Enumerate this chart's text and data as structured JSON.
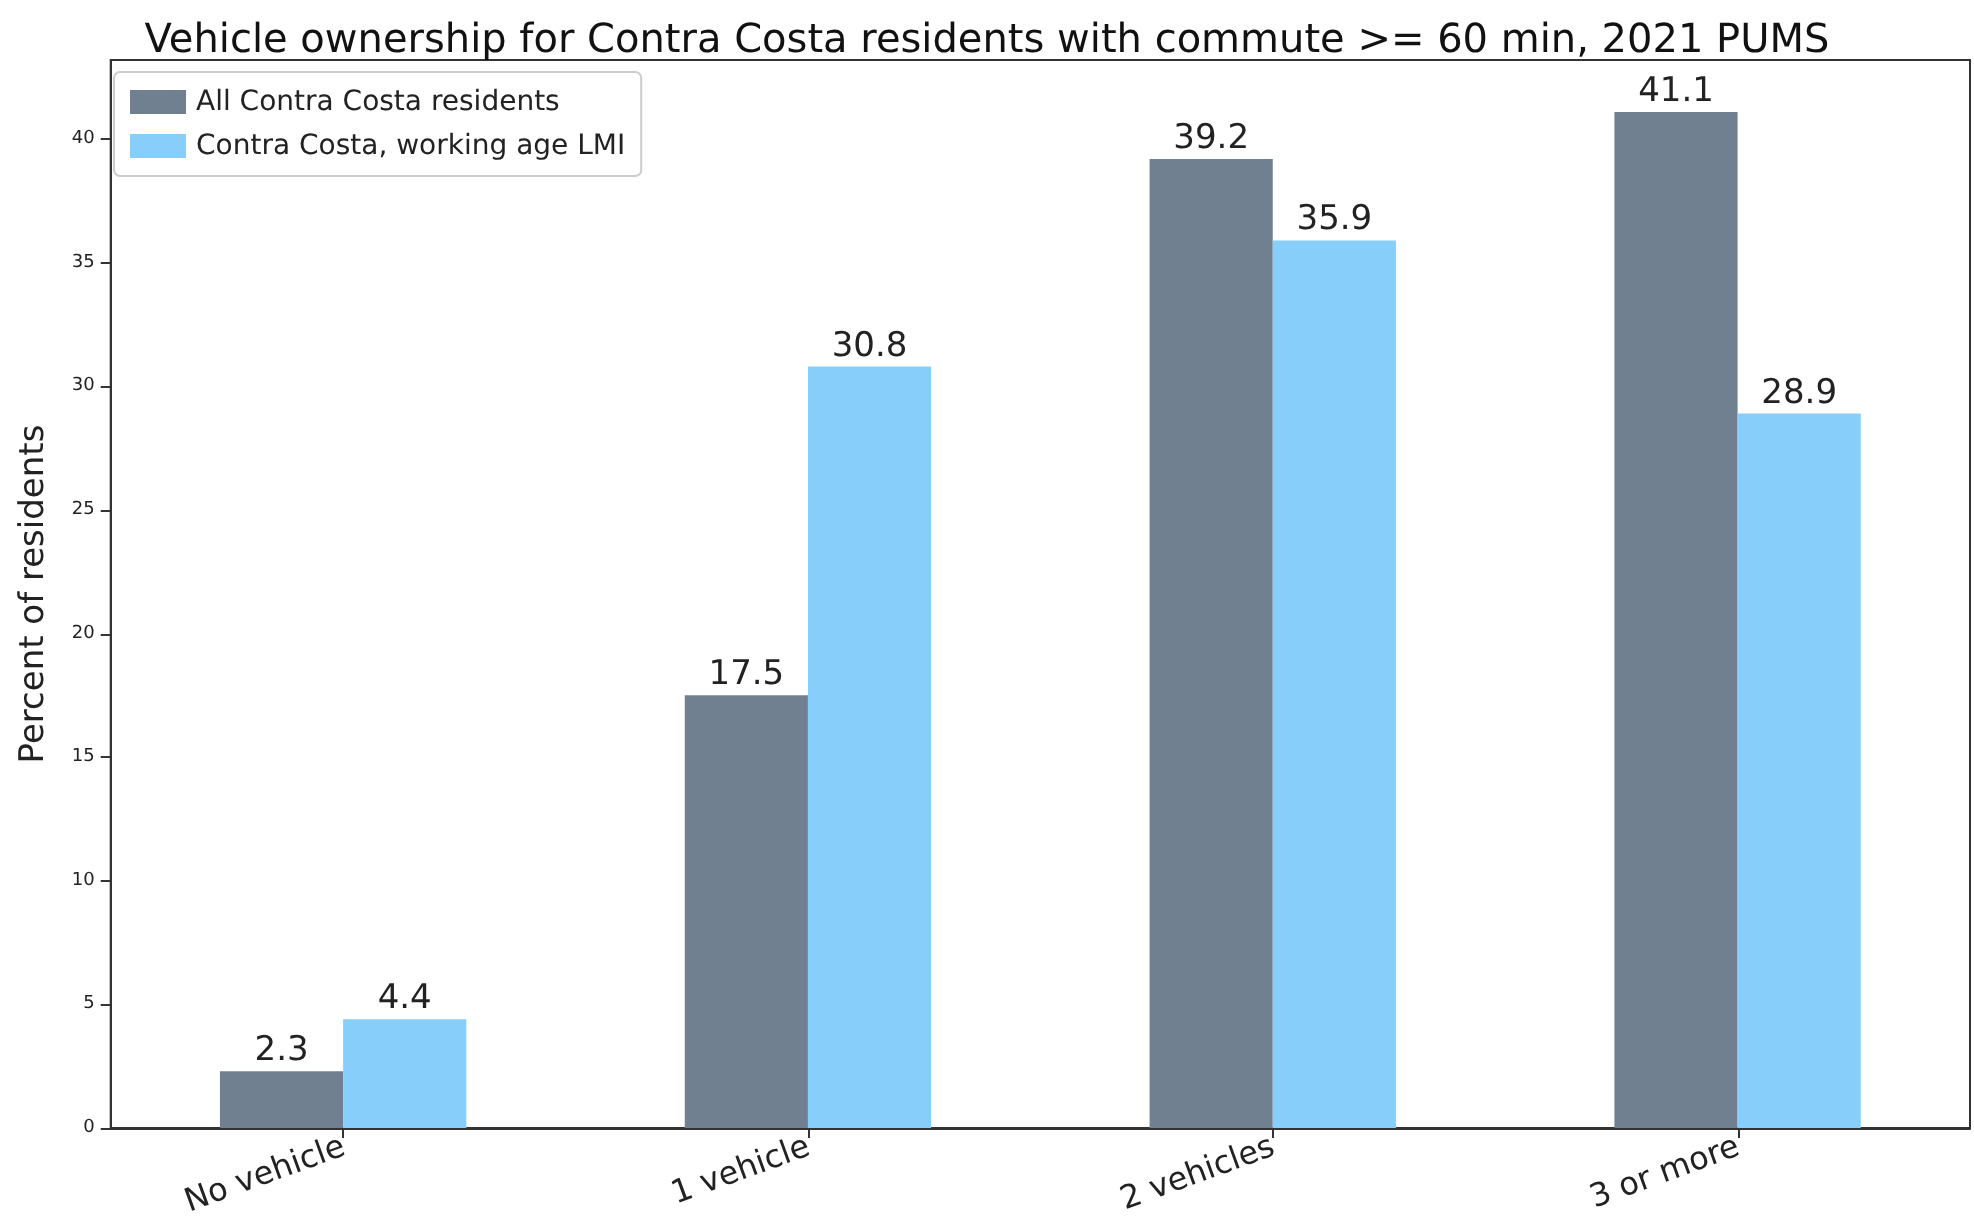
{
  "chart_data": {
    "type": "bar",
    "title": "Vehicle ownership for Contra Costa residents with commute >= 60 min, 2021 PUMS",
    "ylabel": "Percent of residents",
    "categories": [
      "No vehicle",
      "1 vehicle",
      "2 vehicles",
      "3 or more"
    ],
    "series": [
      {
        "name": "All Contra Costa residents",
        "color": "#708090",
        "values": [
          2.3,
          17.5,
          39.2,
          41.1
        ]
      },
      {
        "name": "Contra Costa, working age LMI",
        "color": "#87cefa",
        "values": [
          4.4,
          30.8,
          35.9,
          28.9
        ]
      }
    ],
    "ylim": [
      0,
      43.2
    ],
    "yticks": [
      0,
      5,
      10,
      15,
      20,
      25,
      30,
      35,
      40
    ],
    "grid": false,
    "legend": "top left",
    "data_labels": true
  }
}
